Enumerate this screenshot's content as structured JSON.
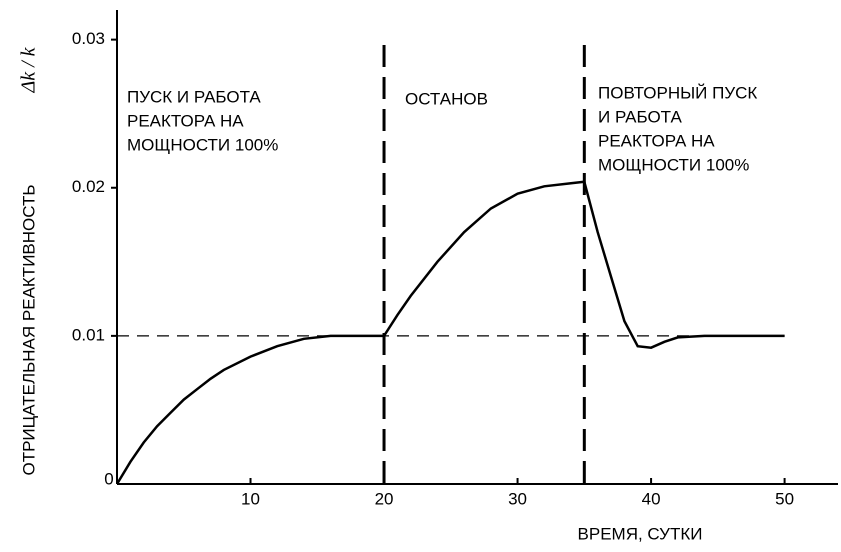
{
  "chart_data": {
    "type": "line",
    "x_label": "ВРЕМЯ, СУТКИ",
    "y_label": "ОТРИЦАТЕЛЬНАЯ РЕАКТИВНОСТЬ",
    "y_unit": "Δk / k",
    "xlim": [
      0,
      54
    ],
    "ylim": [
      0,
      0.032
    ],
    "xticks": [
      0,
      10,
      20,
      30,
      40,
      50
    ],
    "yticks": [
      0.01,
      0.02,
      0.03
    ],
    "vlines": [
      20,
      35
    ],
    "hline": 0.01,
    "color": "#000000",
    "annotations": [
      {
        "lines": [
          "ПУСК И РАБОТА",
          "РЕАКТОРА НА",
          "МОЩНОСТИ 100%"
        ]
      },
      {
        "lines": [
          "ОСТАНОВ"
        ]
      },
      {
        "lines": [
          "ПОВТОРНЫЙ ПУСК",
          "И РАБОТА",
          "РЕАКТОРА НА",
          "МОЩНОСТИ 100%"
        ]
      }
    ],
    "x": [
      0,
      1,
      2,
      3,
      4,
      5,
      6,
      7,
      8,
      10,
      12,
      14,
      16,
      20,
      21,
      22,
      24,
      26,
      28,
      30,
      32,
      34,
      35,
      36,
      37,
      38,
      39,
      40,
      41,
      42,
      44,
      50
    ],
    "values": [
      0,
      0.0015,
      0.0028,
      0.0039,
      0.0048,
      0.0057,
      0.0064,
      0.0071,
      0.0077,
      0.0086,
      0.0093,
      0.0098,
      0.01,
      0.01,
      0.0114,
      0.0127,
      0.015,
      0.017,
      0.0186,
      0.0196,
      0.0201,
      0.0203,
      0.0204,
      0.017,
      0.014,
      0.011,
      0.0093,
      0.0092,
      0.0096,
      0.0099,
      0.01,
      0.01
    ]
  }
}
